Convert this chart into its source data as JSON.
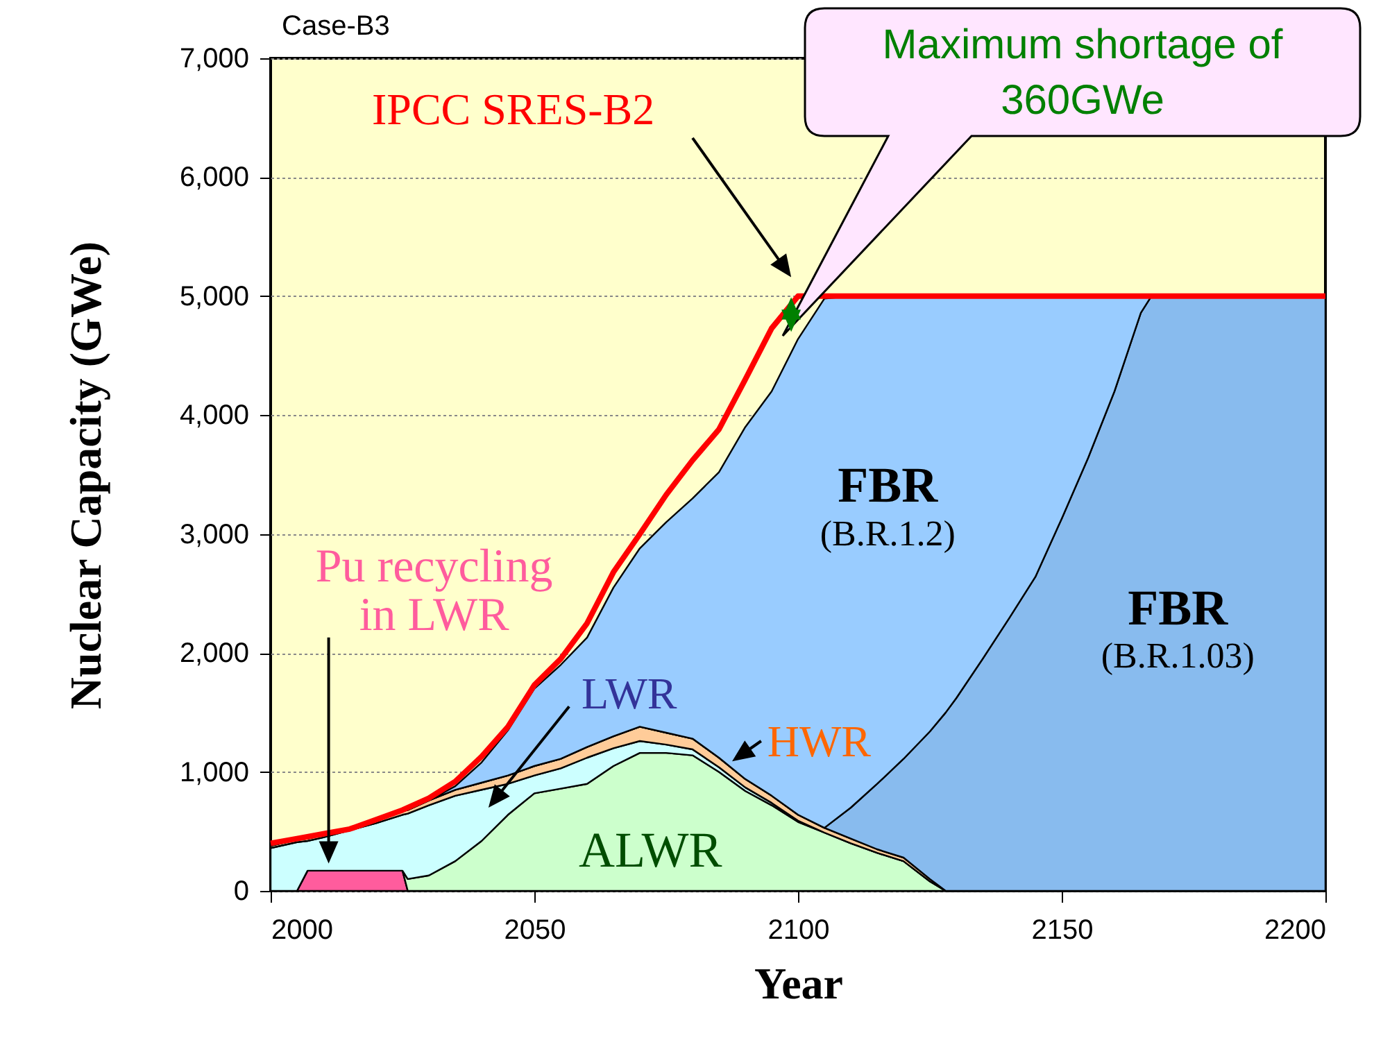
{
  "chart_data": {
    "type": "area",
    "stacked": true,
    "xlabel": "Year",
    "ylabel": "Nuclear Capacity (GWe)",
    "xlim": [
      2000,
      2200
    ],
    "xticks": [
      2000,
      2050,
      2100,
      2150,
      2200
    ],
    "ylim": [
      0,
      7000
    ],
    "yticks": [
      0,
      {
        "value": 1000,
        "label": "1,000"
      },
      {
        "value": 2000,
        "label": "2,000"
      },
      {
        "value": 3000,
        "label": "3,000"
      },
      {
        "value": 4000,
        "label": "4,000"
      },
      {
        "value": 5000,
        "label": "5,000"
      },
      {
        "value": 6000,
        "label": "6,000"
      },
      {
        "value": 7000,
        "label": "7,000"
      }
    ],
    "grid": "y",
    "annotations": [
      "Case-B3",
      "Maximum shortage of 360GWe"
    ],
    "x": [
      2000,
      2005,
      2007,
      2010,
      2015,
      2020,
      2025,
      2026,
      2030,
      2035,
      2040,
      2045,
      2050,
      2055,
      2060,
      2065,
      2070,
      2075,
      2080,
      2085,
      2090,
      2095,
      2100,
      2105,
      2110,
      2115,
      2120,
      2125,
      2128,
      2130,
      2135,
      2140,
      2145,
      2150,
      2155,
      2160,
      2165,
      2167,
      2170,
      2180,
      2190,
      2200
    ],
    "series": [
      {
        "name": "Pu recycling in LWR",
        "color": "#ff5c9d",
        "values": [
          0,
          0,
          170,
          170,
          170,
          170,
          170,
          0,
          0,
          0,
          0,
          0,
          0,
          0,
          0,
          0,
          0,
          0,
          0,
          0,
          0,
          0,
          0,
          0,
          0,
          0,
          0,
          0,
          0,
          0,
          0,
          0,
          0,
          0,
          0,
          0,
          0,
          0,
          0,
          0,
          0,
          0
        ]
      },
      {
        "name": "ALWR",
        "color": "#ccffcc",
        "values": [
          0,
          0,
          0,
          0,
          0,
          0,
          0,
          100,
          130,
          250,
          420,
          640,
          820,
          860,
          900,
          1050,
          1160,
          1160,
          1140,
          1000,
          840,
          720,
          580,
          490,
          400,
          320,
          250,
          80,
          0,
          0,
          0,
          0,
          0,
          0,
          0,
          0,
          0,
          0,
          0,
          0,
          0,
          0
        ]
      },
      {
        "name": "LWR",
        "color": "#ccffff",
        "values": [
          360,
          410,
          250,
          280,
          340,
          400,
          470,
          550,
          590,
          550,
          430,
          260,
          150,
          170,
          220,
          150,
          100,
          70,
          50,
          40,
          30,
          20,
          10,
          0,
          0,
          0,
          0,
          0,
          0,
          0,
          0,
          0,
          0,
          0,
          0,
          0,
          0,
          0,
          0,
          0,
          0,
          0
        ]
      },
      {
        "name": "HWR",
        "color": "#ffcc99",
        "values": [
          20,
          20,
          20,
          20,
          20,
          30,
          30,
          30,
          40,
          50,
          60,
          70,
          80,
          80,
          90,
          100,
          120,
          100,
          90,
          80,
          70,
          60,
          50,
          40,
          40,
          30,
          30,
          20,
          0,
          0,
          0,
          0,
          0,
          0,
          0,
          0,
          0,
          0,
          0,
          0,
          0,
          0
        ]
      },
      {
        "name": "FBR (B.R.1.03)",
        "color": "#88bbee",
        "values": [
          0,
          0,
          0,
          0,
          0,
          0,
          0,
          0,
          0,
          0,
          0,
          0,
          0,
          0,
          0,
          0,
          0,
          0,
          0,
          0,
          0,
          0,
          0,
          0,
          260,
          550,
          830,
          1240,
          1500,
          1620,
          1950,
          2290,
          2640,
          3130,
          3640,
          4200,
          4860,
          5000,
          5000,
          5000,
          5000,
          5000
        ]
      },
      {
        "name": "FBR (B.R.1.2)",
        "color": "#99ccff",
        "values": [
          0,
          0,
          0,
          0,
          0,
          0,
          0,
          0,
          0,
          30,
          170,
          380,
          650,
          790,
          920,
          1250,
          1500,
          1770,
          2020,
          2400,
          2960,
          3400,
          4000,
          4450,
          4300,
          4100,
          3890,
          3660,
          3500,
          3380,
          3050,
          2710,
          2360,
          1870,
          1360,
          800,
          140,
          0,
          0,
          0,
          0,
          0
        ]
      },
      {
        "name": "IPCC SRES-B2",
        "type": "line",
        "color": "#ff0000",
        "x": [
          2000,
          2005,
          2010,
          2015,
          2020,
          2025,
          2030,
          2035,
          2040,
          2045,
          2050,
          2055,
          2060,
          2065,
          2070,
          2075,
          2080,
          2085,
          2090,
          2095,
          2100,
          2200
        ],
        "values": [
          400,
          440,
          480,
          520,
          600,
          680,
          780,
          920,
          1130,
          1380,
          1730,
          1950,
          2250,
          2680,
          3000,
          3330,
          3620,
          3880,
          4300,
          4730,
          5000,
          5000
        ]
      }
    ]
  }
}
